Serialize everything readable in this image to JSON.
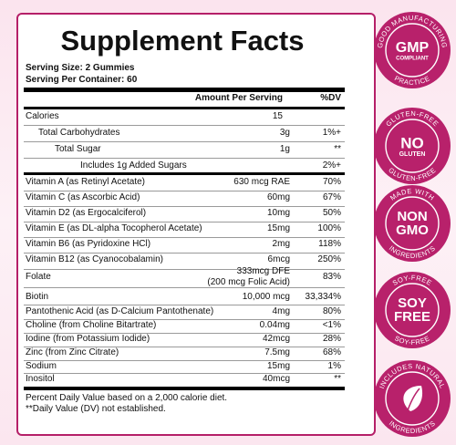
{
  "header": {
    "title": "Supplement Facts",
    "serving_size": "Serving Size: 2 Gummies",
    "servings_per_container": "Serving Per Container: 60"
  },
  "table": {
    "columns": [
      "Amount Per Serving",
      "%DV"
    ],
    "rows": [
      [
        "Calories",
        "15",
        null
      ],
      [
        "Total Carbohydrates",
        "3g",
        "1%+"
      ],
      [
        "Total Sugar",
        "1g",
        "**"
      ],
      [
        "Includes 1g Added Sugars",
        null,
        "2%+"
      ],
      [
        "Vitamin A (as Retinyl Acetate)",
        "630 mcg RAE",
        "70%"
      ],
      [
        "Vitamin C (as Ascorbic Acid)",
        "60mg",
        "67%"
      ],
      [
        "Vitamin D2 (as Ergocalciferol)",
        "10mg",
        "50%"
      ],
      [
        "Vitamin E (as DL-alpha Tocopherol Acetate)",
        "15mg",
        "100%"
      ],
      [
        "Vitamin B6 (as Pyridoxine HCl)",
        "2mg",
        "118%"
      ],
      [
        "Vitamin B12 (as Cyanocobalamin)",
        "6mcg",
        "250%"
      ],
      [
        "Folate",
        [
          "333mcg DFE",
          "(200 mcg Folic Acid)"
        ],
        "83%"
      ],
      [
        "Biotin",
        "10,000 mcg",
        "33,334%"
      ],
      [
        "Pantothenic Acid (as D-Calcium Pantothenate)",
        "4mg",
        "80%"
      ],
      [
        "Choline (from Choline Bitartrate)",
        "0.04mg",
        "<1%"
      ],
      [
        "Iodine (from Potassium Iodide)",
        "42mcg",
        "28%"
      ],
      [
        "Zinc (from Zinc Citrate)",
        "7.5mg",
        "68%"
      ],
      [
        "Sodium",
        "15mg",
        "1%"
      ],
      [
        "Inositol",
        "40mcg",
        "**"
      ]
    ]
  },
  "footnotes": [
    "Percent Daily Value based on a 2,000 calorie diet.",
    "**Daily Value  (DV) not established."
  ],
  "badges": [
    {
      "top": "GOOD MANUFACTURING",
      "center": [
        "GMP",
        "COMPLIANT"
      ],
      "bottom": "PRACTICE"
    },
    {
      "top": "GLUTEN-FREE",
      "center": [
        "NO",
        "GLUTEN"
      ],
      "bottom": "GLUTEN-FREE"
    },
    {
      "top": "MADE WITH",
      "center": [
        "NON",
        "GMO"
      ],
      "bottom": "INGREDIENTS"
    },
    {
      "top": "SOY-FREE",
      "center": [
        "SOY",
        "FREE"
      ],
      "bottom": "SOY-FREE"
    },
    {
      "top": "INCLUDES NATURAL",
      "bottom": "INGREDIENTS"
    }
  ]
}
